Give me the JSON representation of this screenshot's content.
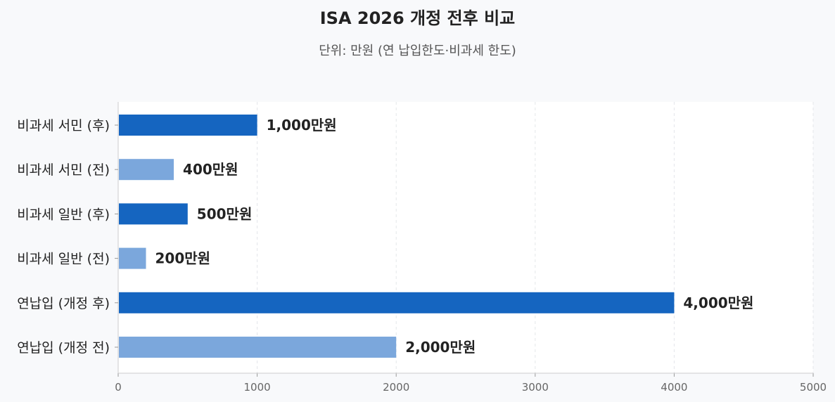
{
  "chart_data": {
    "type": "bar",
    "orientation": "horizontal",
    "title": "ISA 2026 개정 전후 비교",
    "subtitle": "단위: 만원 (연 납입한도·비과세 한도)",
    "xlabel": "",
    "ylabel": "",
    "xlim": [
      0,
      5000
    ],
    "x_ticks": [
      "0",
      "1000",
      "2000",
      "3000",
      "4000",
      "5000"
    ],
    "grid": "vertical dashed",
    "legend": "none",
    "categories": [
      "비과세 서민 (후)",
      "비과세 서민 (전)",
      "비과세 일반 (후)",
      "비과세 일반 (전)",
      "연납입 (개정 후)",
      "연납입 (개정 전)"
    ],
    "values": [
      1000,
      400,
      500,
      200,
      4000,
      2000
    ],
    "data_labels": [
      "1,000만원",
      "400만원",
      "500만원",
      "200만원",
      "4,000만원",
      "2,000만원"
    ],
    "bar_colors": [
      "#1565c0",
      "#7ba7dc",
      "#1565c0",
      "#7ba7dc",
      "#1565c0",
      "#7ba7dc"
    ]
  },
  "colors": {
    "after": "#1565c0",
    "before": "#7ba7dc",
    "plot_background": "#ffffff",
    "page_background": "#f8f9fb"
  }
}
